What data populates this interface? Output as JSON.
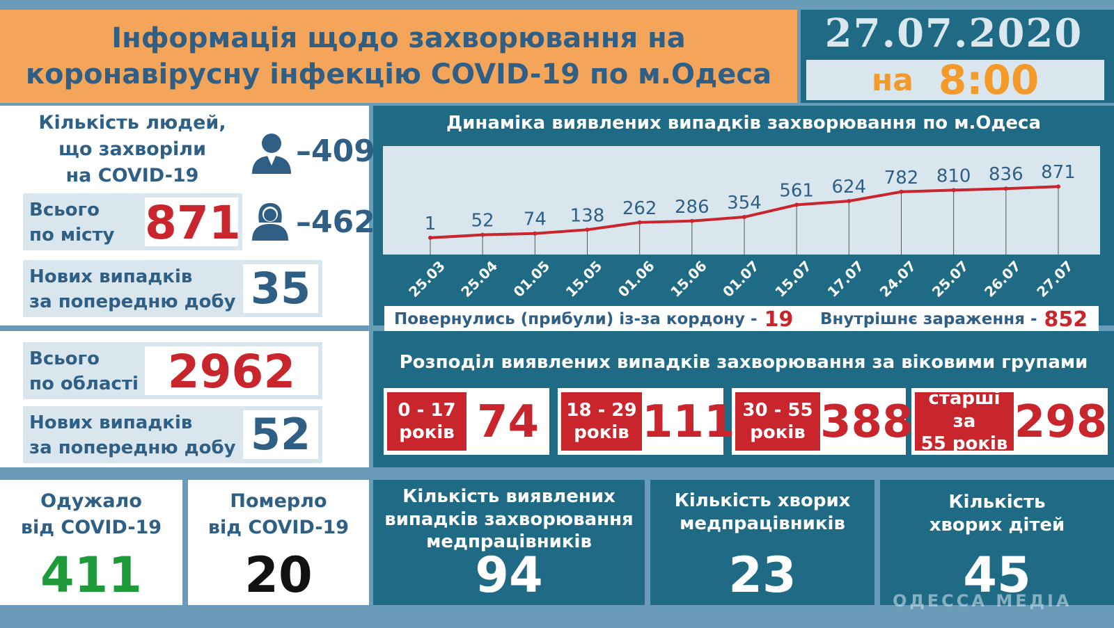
{
  "header": {
    "title_line1": "Інформація щодо захворювання на",
    "title_line2": "коронавірусну інфекцію COVID-19 по м.Одеса",
    "date": "27.07.2020",
    "time_prefix": "на",
    "time": "8:00"
  },
  "city": {
    "people_label_line1": "Кількість людей,",
    "people_label_line2": "що захворіли",
    "people_label_line3": "на COVID-19",
    "men_count": "–409",
    "women_count": "–462",
    "total_label_line1": "Всього",
    "total_label_line2": "по місту",
    "total_value": "871",
    "new_label_line1": "Нових випадків",
    "new_label_line2": "за попередню добу",
    "new_value": "35"
  },
  "region": {
    "total_label_line1": "Всього",
    "total_label_line2": "по області",
    "total_value": "2962",
    "new_label_line1": "Нових випадків",
    "new_label_line2": "за попередню добу",
    "new_value": "52"
  },
  "recovered": {
    "label_line1": "Одужало",
    "label_line2": "від COVID-19",
    "value": "411"
  },
  "died": {
    "label_line1": "Померло",
    "label_line2": "від COVID-19",
    "value": "20"
  },
  "chart_data": {
    "type": "line",
    "title": "Динаміка виявлених випадків захворювання по м.Одеса",
    "categories": [
      "25.03",
      "25.04",
      "01.05",
      "15.05",
      "01.06",
      "15.06",
      "01.07",
      "15.07",
      "17.07",
      "24.07",
      "25.07",
      "26.07",
      "27.07"
    ],
    "values": [
      1,
      52,
      74,
      138,
      262,
      286,
      354,
      561,
      624,
      782,
      810,
      836,
      871
    ],
    "color": "#c9252c"
  },
  "sources": {
    "returned_label": "Повернулись (прибули) із-за кордону -",
    "returned_value": "19",
    "internal_label": "Внутрішнє зараження  -",
    "internal_value": "852"
  },
  "age": {
    "title": "Розподіл виявлених випадків захворювання за віковими групами",
    "groups": [
      {
        "line1": "0 - 17",
        "line2": "років",
        "value": "74"
      },
      {
        "line1": "18 - 29",
        "line2": "років",
        "value": "111"
      },
      {
        "line1": "30 - 55",
        "line2": "років",
        "value": "388"
      },
      {
        "line1": "старші за",
        "line2": "55 років",
        "value": "298"
      }
    ]
  },
  "medics_cases": {
    "line1": "Кількість виявлених",
    "line2": "випадків захворювання",
    "line3": "медпрацівників",
    "value": "94"
  },
  "medics_sick": {
    "line1": "Кількість хворих",
    "line2": "медпрацівників",
    "value": "23"
  },
  "children": {
    "line1": "Кількість",
    "line2": "хворих дітей",
    "value": "45"
  },
  "watermark": "ОДЕССА МЕДІА",
  "colors": {
    "accent_orange": "#f5a55a",
    "dark_teal": "#1f6b85",
    "red": "#c9252c",
    "green": "#1e9a3a",
    "navy": "#2f5f85"
  }
}
